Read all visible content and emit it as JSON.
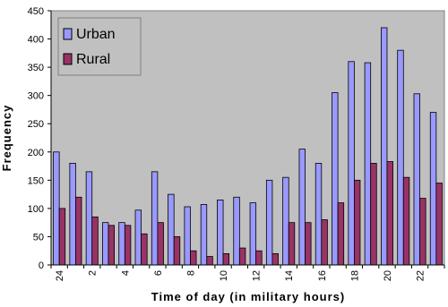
{
  "chart_data": {
    "type": "bar",
    "x_label": "Time of day (in military hours)",
    "y_label": "Frequency",
    "categories": [
      "24",
      null,
      "2",
      null,
      "4",
      null,
      "6",
      null,
      "8",
      null,
      "10",
      null,
      "12",
      null,
      "14",
      null,
      "16",
      null,
      "18",
      null,
      "20",
      null,
      "22",
      null
    ],
    "series": [
      {
        "name": "Urban",
        "color": "#9999ff",
        "values": [
          200,
          180,
          165,
          75,
          75,
          97,
          165,
          125,
          103,
          107,
          115,
          120,
          110,
          150,
          155,
          205,
          180,
          305,
          360,
          358,
          420,
          380,
          303,
          270
        ]
      },
      {
        "name": "Rural",
        "color": "#993366",
        "values": [
          100,
          120,
          85,
          70,
          70,
          55,
          75,
          50,
          25,
          15,
          20,
          30,
          25,
          20,
          75,
          75,
          80,
          110,
          150,
          180,
          183,
          155,
          118,
          145
        ]
      }
    ],
    "ylim": [
      0,
      450
    ],
    "yticks": [
      0,
      50,
      100,
      150,
      200,
      250,
      300,
      350,
      400,
      450
    ],
    "legend": "upper-left",
    "background": "#c0c0c0"
  }
}
